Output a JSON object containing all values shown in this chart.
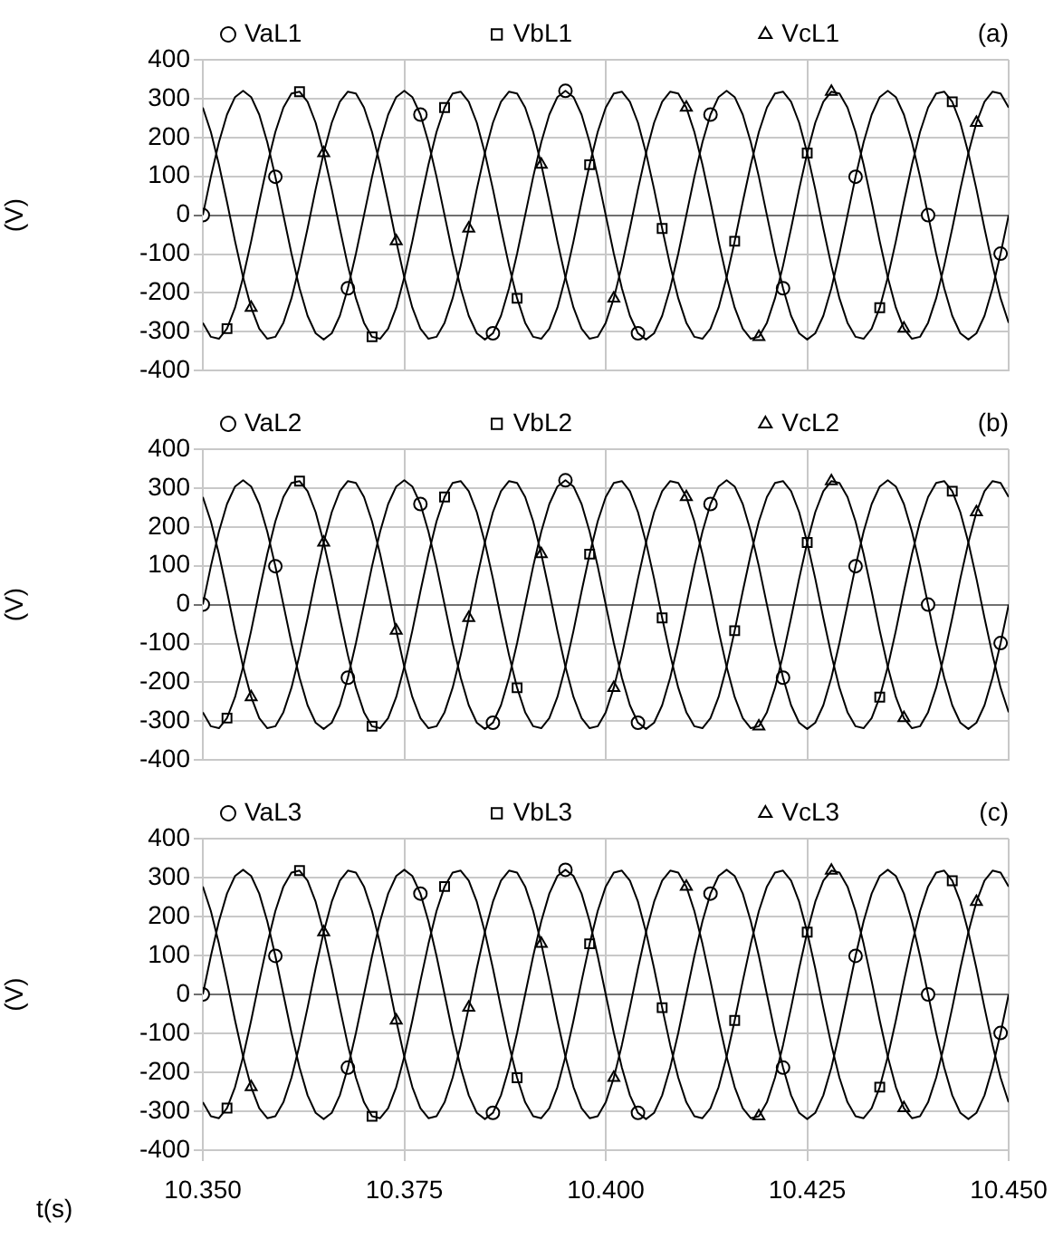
{
  "chart_data": [
    {
      "type": "line",
      "ylabel": "(V)",
      "annotations": [
        "(a)"
      ],
      "legend": "top",
      "grid": true,
      "tick_labels": "y",
      "xlim": [
        10.35,
        10.45
      ],
      "xticks": [
        {
          "value": 10.35,
          "label": null
        },
        {
          "value": 10.375,
          "label": null
        },
        {
          "value": 10.4,
          "label": null
        },
        {
          "value": 10.425,
          "label": null
        },
        {
          "value": 10.45,
          "label": null
        }
      ],
      "ylim": [
        -400,
        400
      ],
      "yticks": [
        -400,
        -300,
        -200,
        -100,
        0,
        100,
        200,
        300,
        400
      ],
      "x": [
        10.35,
        10.351,
        10.352,
        10.353,
        10.354,
        10.355,
        10.356,
        10.357,
        10.358,
        10.359,
        10.36,
        10.361,
        10.362,
        10.363,
        10.364,
        10.365,
        10.366,
        10.367,
        10.368,
        10.369,
        10.37,
        10.371,
        10.372,
        10.373,
        10.374,
        10.375,
        10.376,
        10.377,
        10.378,
        10.379,
        10.38,
        10.381,
        10.382,
        10.383,
        10.384,
        10.385,
        10.386,
        10.387,
        10.388,
        10.389,
        10.39,
        10.391,
        10.392,
        10.393,
        10.394,
        10.395,
        10.396,
        10.397,
        10.398,
        10.399,
        10.4,
        10.401,
        10.402,
        10.403,
        10.404,
        10.405,
        10.406,
        10.407,
        10.408,
        10.409,
        10.41,
        10.411,
        10.412,
        10.413,
        10.414,
        10.415,
        10.416,
        10.417,
        10.418,
        10.419,
        10.42,
        10.421,
        10.422,
        10.423,
        10.424,
        10.425,
        10.426,
        10.427,
        10.428,
        10.429,
        10.43,
        10.431,
        10.432,
        10.433,
        10.434,
        10.435,
        10.436,
        10.437,
        10.438,
        10.439,
        10.44,
        10.441,
        10.442,
        10.443,
        10.444,
        10.445,
        10.446,
        10.447,
        10.448,
        10.449,
        10.45
      ],
      "series": [
        {
          "color": "#000000",
          "values": [
            0,
            99,
            188,
            259,
            304,
            320,
            304,
            259,
            188,
            99,
            0,
            -99,
            -188,
            -259,
            -304,
            -320,
            -304,
            -259,
            -188,
            -99,
            0,
            99,
            188,
            259,
            304,
            320,
            304,
            259,
            188,
            99,
            0,
            -99,
            -188,
            -259,
            -304,
            -320,
            -304,
            -259,
            -188,
            -99,
            0,
            99,
            188,
            259,
            304,
            320,
            304,
            259,
            188,
            99,
            0,
            -99,
            -188,
            -259,
            -304,
            -320,
            -304,
            -259,
            -188,
            -99,
            0,
            99,
            188,
            259,
            304,
            320,
            304,
            259,
            188,
            99,
            0,
            -99,
            -188,
            -259,
            -304,
            -320,
            -304,
            -259,
            -188,
            -99,
            0,
            99,
            188,
            259,
            304,
            320,
            304,
            259,
            188,
            99,
            0,
            -99,
            -188,
            -259,
            -304,
            -320,
            -304,
            -259,
            -188,
            -99,
            0
          ]
        },
        {
          "color": "#000000",
          "values": [
            -277,
            -313,
            -318,
            -292,
            -238,
            -160,
            -67,
            34,
            130,
            214,
            277,
            313,
            318,
            292,
            238,
            160,
            67,
            -34,
            -130,
            -214,
            -277,
            -313,
            -318,
            -292,
            -238,
            -160,
            -67,
            34,
            130,
            214,
            277,
            313,
            318,
            292,
            238,
            160,
            67,
            -34,
            -130,
            -214,
            -277,
            -313,
            -318,
            -292,
            -238,
            -160,
            -67,
            34,
            130,
            214,
            277,
            313,
            318,
            292,
            238,
            160,
            67,
            -34,
            -130,
            -214,
            -277,
            -313,
            -318,
            -292,
            -238,
            -160,
            -67,
            34,
            130,
            214,
            277,
            313,
            318,
            292,
            238,
            160,
            67,
            -34,
            -130,
            -214,
            -277,
            -313,
            -318,
            -292,
            -238,
            -160,
            -67,
            34,
            130,
            214,
            277,
            313,
            318,
            292,
            238,
            160,
            67,
            -34,
            -130,
            -214,
            -277
          ]
        },
        {
          "color": "#000000",
          "values": [
            277,
            214,
            130,
            34,
            -67,
            -160,
            -238,
            -292,
            -318,
            -313,
            -277,
            -214,
            -130,
            -34,
            67,
            160,
            238,
            292,
            318,
            313,
            277,
            214,
            130,
            34,
            -67,
            -160,
            -238,
            -292,
            -318,
            -313,
            -277,
            -214,
            -130,
            -34,
            67,
            160,
            238,
            292,
            318,
            313,
            277,
            214,
            130,
            34,
            -67,
            -160,
            -238,
            -292,
            -318,
            -313,
            -277,
            -214,
            -130,
            -34,
            67,
            160,
            238,
            292,
            318,
            313,
            277,
            214,
            130,
            34,
            -67,
            -160,
            -238,
            -292,
            -318,
            -313,
            -277,
            -214,
            -130,
            -34,
            67,
            160,
            238,
            292,
            318,
            313,
            277,
            214,
            130,
            34,
            -67,
            -160,
            -238,
            -292,
            -318,
            -313,
            -277,
            -214,
            -130,
            -34,
            67,
            160,
            238,
            292,
            318,
            313,
            277
          ]
        },
        {
          "type": "scatter",
          "name": "VaL1",
          "color": "#000000",
          "marker": "circle",
          "x": [
            10.35,
            10.359,
            10.368,
            10.377,
            10.386,
            10.395,
            10.404,
            10.413,
            10.422,
            10.431,
            10.44,
            10.449
          ],
          "values": [
            0,
            99,
            -188,
            259,
            -304,
            320,
            -304,
            259,
            -188,
            99,
            0,
            -99
          ]
        },
        {
          "type": "scatter",
          "name": "VbL1",
          "color": "#000000",
          "marker": "square",
          "x": [
            10.353,
            10.362,
            10.371,
            10.38,
            10.389,
            10.398,
            10.407,
            10.416,
            10.425,
            10.434,
            10.443
          ],
          "values": [
            -292,
            318,
            -313,
            277,
            -214,
            130,
            -34,
            -67,
            160,
            -238,
            292
          ]
        },
        {
          "type": "scatter",
          "name": "VcL1",
          "color": "#000000",
          "marker": "triangle",
          "x": [
            10.356,
            10.365,
            10.374,
            10.383,
            10.392,
            10.401,
            10.41,
            10.419,
            10.428,
            10.437,
            10.446
          ],
          "values": [
            -238,
            160,
            -67,
            -34,
            130,
            -214,
            277,
            -313,
            318,
            -292,
            238
          ]
        }
      ]
    },
    {
      "type": "line",
      "ylabel": "(V)",
      "annotations": [
        "(b)"
      ],
      "legend": "top",
      "grid": true,
      "tick_labels": "y",
      "xlim": [
        10.35,
        10.45
      ],
      "xticks": [
        {
          "value": 10.35,
          "label": null
        },
        {
          "value": 10.375,
          "label": null
        },
        {
          "value": 10.4,
          "label": null
        },
        {
          "value": 10.425,
          "label": null
        },
        {
          "value": 10.45,
          "label": null
        }
      ],
      "ylim": [
        -400,
        400
      ],
      "yticks": [
        -400,
        -300,
        -200,
        -100,
        0,
        100,
        200,
        300,
        400
      ],
      "x": [
        10.35,
        10.351,
        10.352,
        10.353,
        10.354,
        10.355,
        10.356,
        10.357,
        10.358,
        10.359,
        10.36,
        10.361,
        10.362,
        10.363,
        10.364,
        10.365,
        10.366,
        10.367,
        10.368,
        10.369,
        10.37,
        10.371,
        10.372,
        10.373,
        10.374,
        10.375,
        10.376,
        10.377,
        10.378,
        10.379,
        10.38,
        10.381,
        10.382,
        10.383,
        10.384,
        10.385,
        10.386,
        10.387,
        10.388,
        10.389,
        10.39,
        10.391,
        10.392,
        10.393,
        10.394,
        10.395,
        10.396,
        10.397,
        10.398,
        10.399,
        10.4,
        10.401,
        10.402,
        10.403,
        10.404,
        10.405,
        10.406,
        10.407,
        10.408,
        10.409,
        10.41,
        10.411,
        10.412,
        10.413,
        10.414,
        10.415,
        10.416,
        10.417,
        10.418,
        10.419,
        10.42,
        10.421,
        10.422,
        10.423,
        10.424,
        10.425,
        10.426,
        10.427,
        10.428,
        10.429,
        10.43,
        10.431,
        10.432,
        10.433,
        10.434,
        10.435,
        10.436,
        10.437,
        10.438,
        10.439,
        10.44,
        10.441,
        10.442,
        10.443,
        10.444,
        10.445,
        10.446,
        10.447,
        10.448,
        10.449,
        10.45
      ],
      "series": [
        {
          "color": "#000000",
          "values": [
            0,
            99,
            188,
            259,
            304,
            320,
            304,
            259,
            188,
            99,
            0,
            -99,
            -188,
            -259,
            -304,
            -320,
            -304,
            -259,
            -188,
            -99,
            0,
            99,
            188,
            259,
            304,
            320,
            304,
            259,
            188,
            99,
            0,
            -99,
            -188,
            -259,
            -304,
            -320,
            -304,
            -259,
            -188,
            -99,
            0,
            99,
            188,
            259,
            304,
            320,
            304,
            259,
            188,
            99,
            0,
            -99,
            -188,
            -259,
            -304,
            -320,
            -304,
            -259,
            -188,
            -99,
            0,
            99,
            188,
            259,
            304,
            320,
            304,
            259,
            188,
            99,
            0,
            -99,
            -188,
            -259,
            -304,
            -320,
            -304,
            -259,
            -188,
            -99,
            0,
            99,
            188,
            259,
            304,
            320,
            304,
            259,
            188,
            99,
            0,
            -99,
            -188,
            -259,
            -304,
            -320,
            -304,
            -259,
            -188,
            -99,
            0
          ]
        },
        {
          "color": "#000000",
          "values": [
            -277,
            -313,
            -318,
            -292,
            -238,
            -160,
            -67,
            34,
            130,
            214,
            277,
            313,
            318,
            292,
            238,
            160,
            67,
            -34,
            -130,
            -214,
            -277,
            -313,
            -318,
            -292,
            -238,
            -160,
            -67,
            34,
            130,
            214,
            277,
            313,
            318,
            292,
            238,
            160,
            67,
            -34,
            -130,
            -214,
            -277,
            -313,
            -318,
            -292,
            -238,
            -160,
            -67,
            34,
            130,
            214,
            277,
            313,
            318,
            292,
            238,
            160,
            67,
            -34,
            -130,
            -214,
            -277,
            -313,
            -318,
            -292,
            -238,
            -160,
            -67,
            34,
            130,
            214,
            277,
            313,
            318,
            292,
            238,
            160,
            67,
            -34,
            -130,
            -214,
            -277,
            -313,
            -318,
            -292,
            -238,
            -160,
            -67,
            34,
            130,
            214,
            277,
            313,
            318,
            292,
            238,
            160,
            67,
            -34,
            -130,
            -214,
            -277
          ]
        },
        {
          "color": "#000000",
          "values": [
            277,
            214,
            130,
            34,
            -67,
            -160,
            -238,
            -292,
            -318,
            -313,
            -277,
            -214,
            -130,
            -34,
            67,
            160,
            238,
            292,
            318,
            313,
            277,
            214,
            130,
            34,
            -67,
            -160,
            -238,
            -292,
            -318,
            -313,
            -277,
            -214,
            -130,
            -34,
            67,
            160,
            238,
            292,
            318,
            313,
            277,
            214,
            130,
            34,
            -67,
            -160,
            -238,
            -292,
            -318,
            -313,
            -277,
            -214,
            -130,
            -34,
            67,
            160,
            238,
            292,
            318,
            313,
            277,
            214,
            130,
            34,
            -67,
            -160,
            -238,
            -292,
            -318,
            -313,
            -277,
            -214,
            -130,
            -34,
            67,
            160,
            238,
            292,
            318,
            313,
            277,
            214,
            130,
            34,
            -67,
            -160,
            -238,
            -292,
            -318,
            -313,
            -277,
            -214,
            -130,
            -34,
            67,
            160,
            238,
            292,
            318,
            313,
            277
          ]
        },
        {
          "type": "scatter",
          "name": "VaL2",
          "color": "#000000",
          "marker": "circle",
          "x": [
            10.35,
            10.359,
            10.368,
            10.377,
            10.386,
            10.395,
            10.404,
            10.413,
            10.422,
            10.431,
            10.44,
            10.449
          ],
          "values": [
            0,
            99,
            -188,
            259,
            -304,
            320,
            -304,
            259,
            -188,
            99,
            0,
            -99
          ]
        },
        {
          "type": "scatter",
          "name": "VbL2",
          "color": "#000000",
          "marker": "square",
          "x": [
            10.353,
            10.362,
            10.371,
            10.38,
            10.389,
            10.398,
            10.407,
            10.416,
            10.425,
            10.434,
            10.443
          ],
          "values": [
            -292,
            318,
            -313,
            277,
            -214,
            130,
            -34,
            -67,
            160,
            -238,
            292
          ]
        },
        {
          "type": "scatter",
          "name": "VcL2",
          "color": "#000000",
          "marker": "triangle",
          "x": [
            10.356,
            10.365,
            10.374,
            10.383,
            10.392,
            10.401,
            10.41,
            10.419,
            10.428,
            10.437,
            10.446
          ],
          "values": [
            -238,
            160,
            -67,
            -34,
            130,
            -214,
            277,
            -313,
            318,
            -292,
            238
          ]
        }
      ]
    },
    {
      "type": "line",
      "ylabel": "(V)",
      "xlabel": "t(s)",
      "annotations": [
        "(c)"
      ],
      "legend": "top",
      "grid": true,
      "xlim": [
        10.35,
        10.45
      ],
      "xticks": [
        {
          "value": 10.35,
          "label": "10.350"
        },
        {
          "value": 10.375,
          "label": "10.375"
        },
        {
          "value": 10.4,
          "label": "10.400"
        },
        {
          "value": 10.425,
          "label": "10.425"
        },
        {
          "value": 10.45,
          "label": "10.450"
        }
      ],
      "ylim": [
        -400,
        400
      ],
      "yticks": [
        -400,
        -300,
        -200,
        -100,
        0,
        100,
        200,
        300,
        400
      ],
      "x": [
        10.35,
        10.351,
        10.352,
        10.353,
        10.354,
        10.355,
        10.356,
        10.357,
        10.358,
        10.359,
        10.36,
        10.361,
        10.362,
        10.363,
        10.364,
        10.365,
        10.366,
        10.367,
        10.368,
        10.369,
        10.37,
        10.371,
        10.372,
        10.373,
        10.374,
        10.375,
        10.376,
        10.377,
        10.378,
        10.379,
        10.38,
        10.381,
        10.382,
        10.383,
        10.384,
        10.385,
        10.386,
        10.387,
        10.388,
        10.389,
        10.39,
        10.391,
        10.392,
        10.393,
        10.394,
        10.395,
        10.396,
        10.397,
        10.398,
        10.399,
        10.4,
        10.401,
        10.402,
        10.403,
        10.404,
        10.405,
        10.406,
        10.407,
        10.408,
        10.409,
        10.41,
        10.411,
        10.412,
        10.413,
        10.414,
        10.415,
        10.416,
        10.417,
        10.418,
        10.419,
        10.42,
        10.421,
        10.422,
        10.423,
        10.424,
        10.425,
        10.426,
        10.427,
        10.428,
        10.429,
        10.43,
        10.431,
        10.432,
        10.433,
        10.434,
        10.435,
        10.436,
        10.437,
        10.438,
        10.439,
        10.44,
        10.441,
        10.442,
        10.443,
        10.444,
        10.445,
        10.446,
        10.447,
        10.448,
        10.449,
        10.45
      ],
      "series": [
        {
          "color": "#000000",
          "values": [
            0,
            99,
            188,
            259,
            304,
            320,
            304,
            259,
            188,
            99,
            0,
            -99,
            -188,
            -259,
            -304,
            -320,
            -304,
            -259,
            -188,
            -99,
            0,
            99,
            188,
            259,
            304,
            320,
            304,
            259,
            188,
            99,
            0,
            -99,
            -188,
            -259,
            -304,
            -320,
            -304,
            -259,
            -188,
            -99,
            0,
            99,
            188,
            259,
            304,
            320,
            304,
            259,
            188,
            99,
            0,
            -99,
            -188,
            -259,
            -304,
            -320,
            -304,
            -259,
            -188,
            -99,
            0,
            99,
            188,
            259,
            304,
            320,
            304,
            259,
            188,
            99,
            0,
            -99,
            -188,
            -259,
            -304,
            -320,
            -304,
            -259,
            -188,
            -99,
            0,
            99,
            188,
            259,
            304,
            320,
            304,
            259,
            188,
            99,
            0,
            -99,
            -188,
            -259,
            -304,
            -320,
            -304,
            -259,
            -188,
            -99,
            0
          ]
        },
        {
          "color": "#000000",
          "values": [
            -277,
            -313,
            -318,
            -292,
            -238,
            -160,
            -67,
            34,
            130,
            214,
            277,
            313,
            318,
            292,
            238,
            160,
            67,
            -34,
            -130,
            -214,
            -277,
            -313,
            -318,
            -292,
            -238,
            -160,
            -67,
            34,
            130,
            214,
            277,
            313,
            318,
            292,
            238,
            160,
            67,
            -34,
            -130,
            -214,
            -277,
            -313,
            -318,
            -292,
            -238,
            -160,
            -67,
            34,
            130,
            214,
            277,
            313,
            318,
            292,
            238,
            160,
            67,
            -34,
            -130,
            -214,
            -277,
            -313,
            -318,
            -292,
            -238,
            -160,
            -67,
            34,
            130,
            214,
            277,
            313,
            318,
            292,
            238,
            160,
            67,
            -34,
            -130,
            -214,
            -277,
            -313,
            -318,
            -292,
            -238,
            -160,
            -67,
            34,
            130,
            214,
            277,
            313,
            318,
            292,
            238,
            160,
            67,
            -34,
            -130,
            -214,
            -277
          ]
        },
        {
          "color": "#000000",
          "values": [
            277,
            214,
            130,
            34,
            -67,
            -160,
            -238,
            -292,
            -318,
            -313,
            -277,
            -214,
            -130,
            -34,
            67,
            160,
            238,
            292,
            318,
            313,
            277,
            214,
            130,
            34,
            -67,
            -160,
            -238,
            -292,
            -318,
            -313,
            -277,
            -214,
            -130,
            -34,
            67,
            160,
            238,
            292,
            318,
            313,
            277,
            214,
            130,
            34,
            -67,
            -160,
            -238,
            -292,
            -318,
            -313,
            -277,
            -214,
            -130,
            -34,
            67,
            160,
            238,
            292,
            318,
            313,
            277,
            214,
            130,
            34,
            -67,
            -160,
            -238,
            -292,
            -318,
            -313,
            -277,
            -214,
            -130,
            -34,
            67,
            160,
            238,
            292,
            318,
            313,
            277,
            214,
            130,
            34,
            -67,
            -160,
            -238,
            -292,
            -318,
            -313,
            -277,
            -214,
            -130,
            -34,
            67,
            160,
            238,
            292,
            318,
            313,
            277
          ]
        },
        {
          "type": "scatter",
          "name": "VaL3",
          "color": "#000000",
          "marker": "circle",
          "x": [
            10.35,
            10.359,
            10.368,
            10.377,
            10.386,
            10.395,
            10.404,
            10.413,
            10.422,
            10.431,
            10.44,
            10.449
          ],
          "values": [
            0,
            99,
            -188,
            259,
            -304,
            320,
            -304,
            259,
            -188,
            99,
            0,
            -99
          ]
        },
        {
          "type": "scatter",
          "name": "VbL3",
          "color": "#000000",
          "marker": "square",
          "x": [
            10.353,
            10.362,
            10.371,
            10.38,
            10.389,
            10.398,
            10.407,
            10.416,
            10.425,
            10.434,
            10.443
          ],
          "values": [
            -292,
            318,
            -313,
            277,
            -214,
            130,
            -34,
            -67,
            160,
            -238,
            292
          ]
        },
        {
          "type": "scatter",
          "name": "VcL3",
          "color": "#000000",
          "marker": "triangle",
          "x": [
            10.356,
            10.365,
            10.374,
            10.383,
            10.392,
            10.401,
            10.41,
            10.419,
            10.428,
            10.437,
            10.446
          ],
          "values": [
            -238,
            160,
            -67,
            -34,
            130,
            -214,
            277,
            -313,
            318,
            -292,
            238
          ]
        }
      ]
    }
  ]
}
